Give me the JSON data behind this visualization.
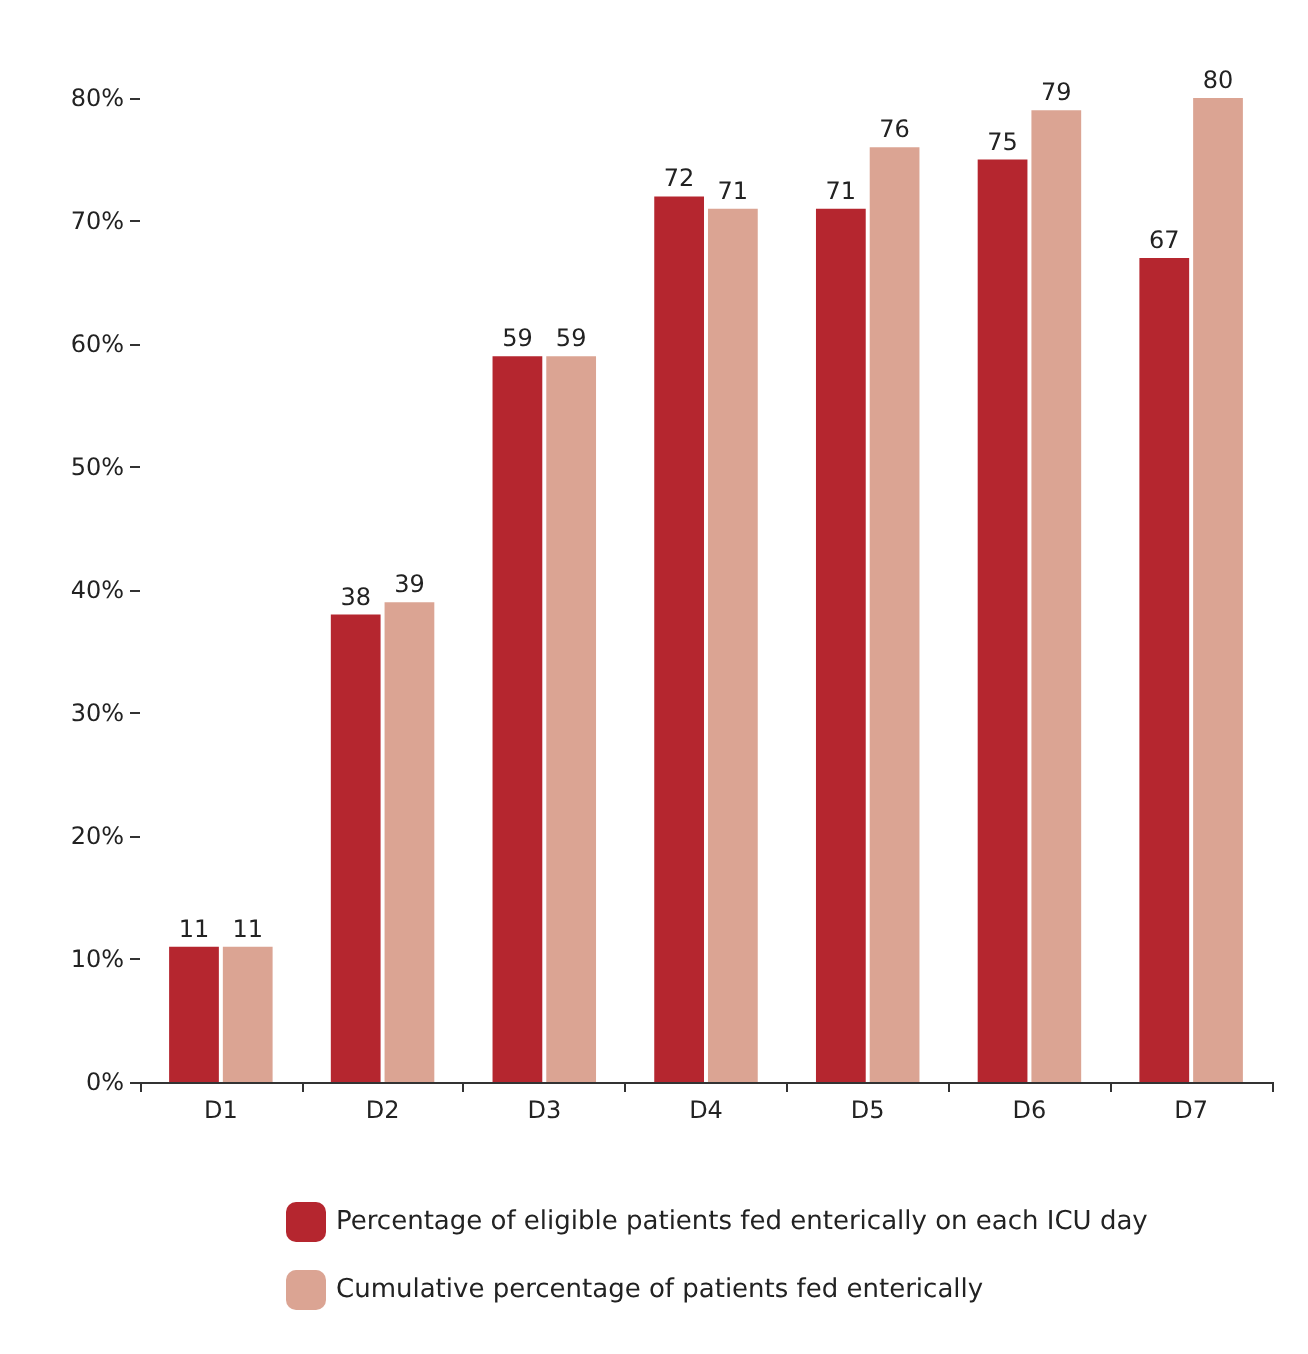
{
  "chart_data": {
    "type": "bar",
    "categories": [
      "D1",
      "D2",
      "D3",
      "D4",
      "D5",
      "D6",
      "D7"
    ],
    "series": [
      {
        "name": "Percentage of eligible patients fed enterically on each ICU day",
        "color": "#b5262f",
        "values": [
          11,
          38,
          59,
          72,
          71,
          75,
          67
        ]
      },
      {
        "name": "Cumulative percentage of patients fed enterically",
        "color": "#dba493",
        "values": [
          11,
          39,
          59,
          71,
          76,
          79,
          80
        ]
      }
    ],
    "ylim": [
      0,
      80
    ],
    "yticks": [
      {
        "value": 0,
        "label": "0%"
      },
      {
        "value": 10,
        "label": "10%"
      },
      {
        "value": 20,
        "label": "20%"
      },
      {
        "value": 30,
        "label": "30%"
      },
      {
        "value": 40,
        "label": "40%"
      },
      {
        "value": 50,
        "label": "50%"
      },
      {
        "value": 60,
        "label": "60%"
      },
      {
        "value": 70,
        "label": "70%"
      },
      {
        "value": 80,
        "label": "80%"
      }
    ],
    "grid": false,
    "legend": "bottom",
    "data_labels": true
  }
}
